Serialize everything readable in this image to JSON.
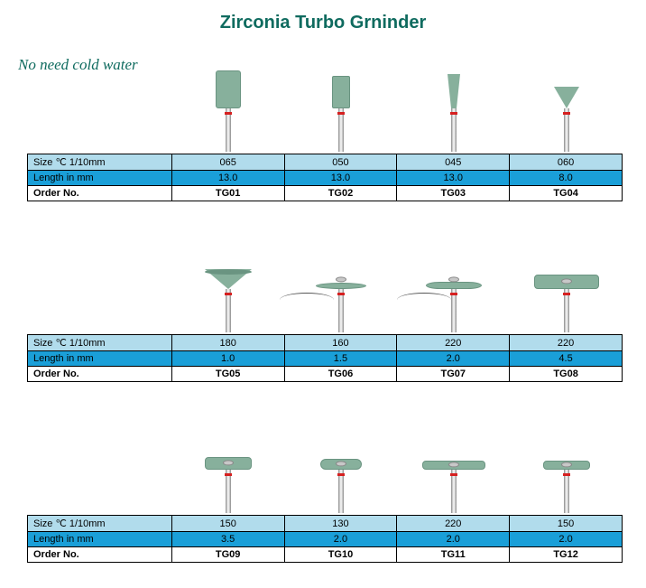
{
  "title": "Zirconia Turbo Grninder",
  "subtitle": "No need cold water",
  "colors": {
    "title": "#0f6b5f",
    "subtitle": "#0f6b5f",
    "head_fill": "#87b09c",
    "head_border": "#6a9481",
    "row_size_bg": "#b1dcec",
    "row_length_bg": "#1a9fd8",
    "shaft_band": "#d62020"
  },
  "labels": {
    "size": "Size ℃ 1/10mm",
    "length": "Length in mm",
    "order": "Order No."
  },
  "sections": [
    {
      "products": [
        {
          "shape": "cylinder-large",
          "size": "065",
          "length": "13.0",
          "order": "TG01"
        },
        {
          "shape": "cylinder-medium",
          "size": "050",
          "length": "13.0",
          "order": "TG02"
        },
        {
          "shape": "taper-cone",
          "size": "045",
          "length": "13.0",
          "order": "TG03"
        },
        {
          "shape": "inverted-cone",
          "size": "060",
          "length": "8.0",
          "order": "TG04"
        }
      ]
    },
    {
      "products": [
        {
          "shape": "inverted-cup",
          "size": "180",
          "length": "1.0",
          "order": "TG05"
        },
        {
          "shape": "disc-thin",
          "size": "160",
          "length": "1.5",
          "order": "TG06"
        },
        {
          "shape": "disc-knife",
          "size": "220",
          "length": "2.0",
          "order": "TG07"
        },
        {
          "shape": "disc-thick",
          "size": "220",
          "length": "4.5",
          "order": "TG08"
        }
      ]
    },
    {
      "products": [
        {
          "shape": "disc-150a",
          "size": "150",
          "length": "3.5",
          "order": "TG09"
        },
        {
          "shape": "disc-130",
          "size": "130",
          "length": "2.0",
          "order": "TG10"
        },
        {
          "shape": "disc-220b",
          "size": "220",
          "length": "2.0",
          "order": "TG11"
        },
        {
          "shape": "disc-150b",
          "size": "150",
          "length": "2.0",
          "order": "TG12"
        }
      ]
    }
  ]
}
